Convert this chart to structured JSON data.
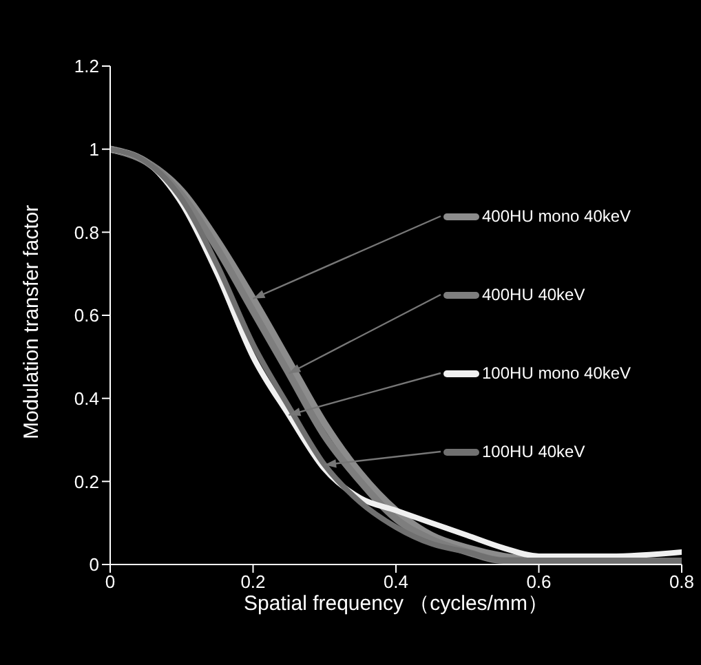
{
  "chart_data": {
    "type": "line",
    "xlabel": "Spatial frequency （cycles/mm）",
    "ylabel": "Modulation transfer factor",
    "x": [
      0,
      0.05,
      0.1,
      0.15,
      0.2,
      0.25,
      0.3,
      0.35,
      0.4,
      0.45,
      0.5,
      0.55,
      0.6,
      0.7,
      0.8
    ],
    "series": [
      {
        "name": "400HU mono 40keV",
        "color": "#8c8c8c",
        "values": [
          1,
          0.97,
          0.9,
          0.78,
          0.64,
          0.49,
          0.34,
          0.22,
          0.13,
          0.07,
          0.04,
          0.02,
          0.01,
          0,
          0
        ]
      },
      {
        "name": "400HU 40keV",
        "color": "#7e7e7e",
        "values": [
          1,
          0.97,
          0.89,
          0.76,
          0.61,
          0.46,
          0.31,
          0.2,
          0.11,
          0.06,
          0.03,
          0.01,
          0.01,
          0,
          0
        ]
      },
      {
        "name": "100HU mono 40keV",
        "color": "#f0f0f0",
        "values": [
          1,
          0.97,
          0.87,
          0.7,
          0.5,
          0.36,
          0.23,
          0.16,
          0.13,
          0.1,
          0.07,
          0.04,
          0.02,
          0.02,
          0.03
        ]
      },
      {
        "name": "100HU 40keV",
        "color": "#707070",
        "values": [
          1,
          0.97,
          0.88,
          0.72,
          0.53,
          0.38,
          0.24,
          0.15,
          0.09,
          0.05,
          0.03,
          0.01,
          0.01,
          0.01,
          0.01
        ]
      }
    ],
    "xlim": [
      0,
      0.8
    ],
    "xticks": [
      0,
      0.2,
      0.4,
      0.6,
      0.8
    ],
    "ylim": [
      0,
      1.2
    ],
    "yticks": [
      0,
      0.2,
      0.4,
      0.6,
      0.8,
      1,
      1.2
    ],
    "grid": false,
    "legend": "right",
    "marker": "none",
    "line_style": "solid"
  }
}
